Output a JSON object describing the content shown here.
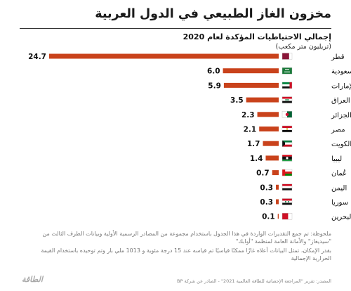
{
  "title": "مخزون الغاز الطبيعي في الدول العربية",
  "subtitle": "إجمالي الاحتياطيات المؤكدة لعام 2020",
  "unit": "(تريليون متر مكعب)",
  "chart_data": {
    "type": "bar",
    "orientation": "horizontal",
    "categories": [
      "قطر",
      "السعودية",
      "الإمارات",
      "العراق",
      "الجزائر",
      "مصر",
      "الكويت",
      "ليبيا",
      "عُمان",
      "اليمن",
      "سوريا",
      "البحرين"
    ],
    "values": [
      24.7,
      6.0,
      5.9,
      3.5,
      2.3,
      2.1,
      1.7,
      1.4,
      0.7,
      0.3,
      0.3,
      0.1
    ],
    "value_labels": [
      "24.7",
      "6.0",
      "5.9",
      "3.5",
      "2.3",
      "2.1",
      "1.7",
      "1.4",
      "0.7",
      "0.3",
      "0.3",
      "0.1"
    ],
    "bar_color": "#c9421b",
    "flag_icons": [
      "qatar-flag",
      "saudi-flag",
      "uae-flag",
      "iraq-flag",
      "algeria-flag",
      "egypt-flag",
      "kuwait-flag",
      "libya-flag",
      "oman-flag",
      "yemen-flag",
      "syria-flag",
      "bahrain-flag"
    ],
    "xlim": [
      0,
      24.7
    ],
    "grid": false,
    "legend": "none"
  },
  "notes": {
    "line1": "ملحوظة: تم جمع التقديرات الواردة في هذا الجدول باستخدام مجموعة من المصادر الرسمية الأولية وبيانات الطرف الثالث من \"سيديغاز\" والأمانة العامة لمنظمة \"أوابك\"",
    "line2": "بقدر الإمكان، تمثل البيانات أعلاه غازًا ممكنًا قياسيًا تم قياسه عند 15 درجة مئوية و 1013 ملي بار وتم توحيده باستخدام القيمة الحرارية الإجمالية"
  },
  "source": "المصدر: تقرير \"المراجعة الإحصائية للطاقة العالمية 2021\" - الصادر عن شركة BP",
  "logo": "الطاقة"
}
